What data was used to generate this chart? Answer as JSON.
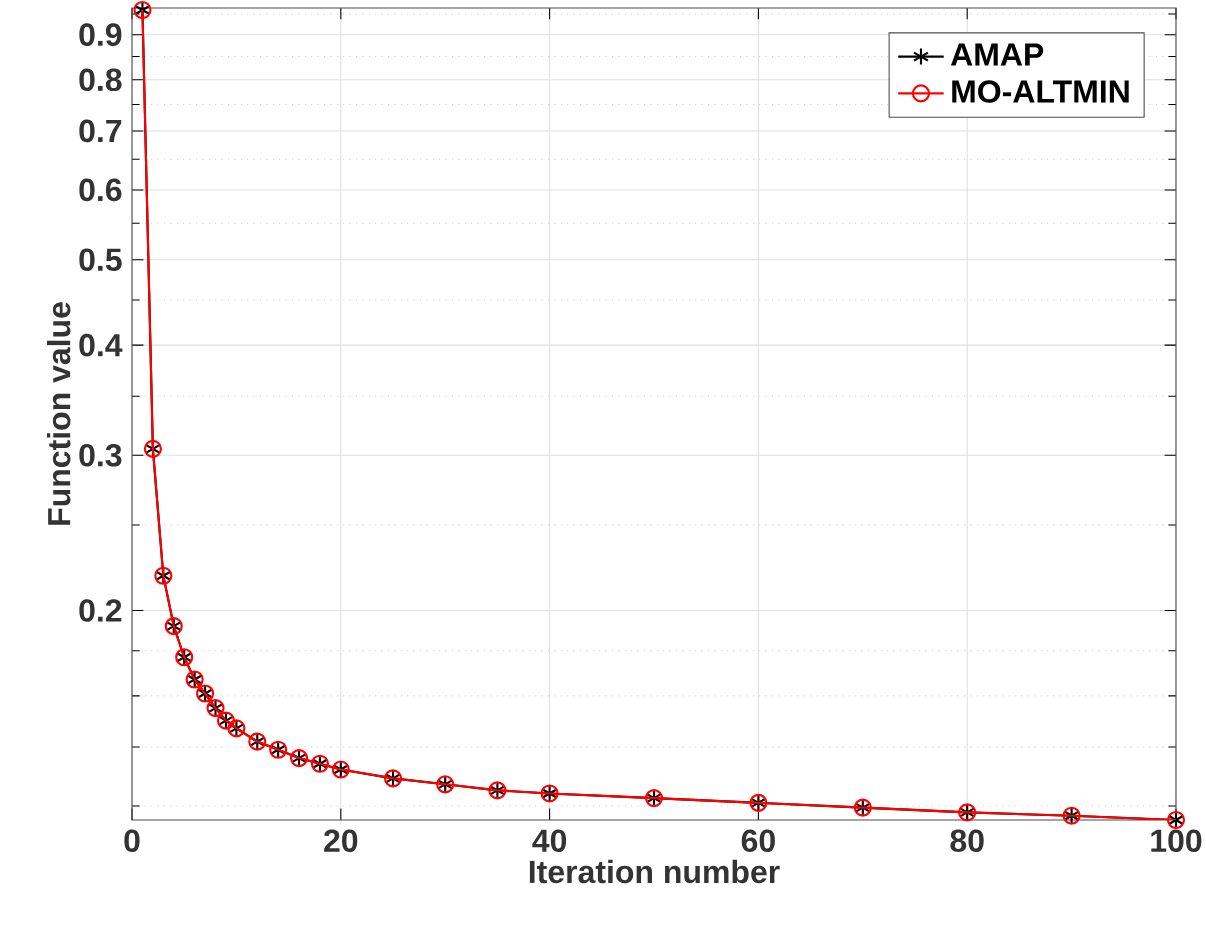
{
  "chart_data": {
    "type": "line",
    "xlabel": "Iteration number",
    "ylabel": "Function value",
    "x": [
      1,
      2,
      3,
      4,
      5,
      6,
      7,
      8,
      9,
      10,
      12,
      14,
      16,
      18,
      20,
      25,
      30,
      35,
      40,
      50,
      60,
      70,
      80,
      90,
      100
    ],
    "series": [
      {
        "name": "AMAP",
        "color": "#000000",
        "marker": "cross",
        "values": [
          0.96,
          0.305,
          0.219,
          0.192,
          0.177,
          0.167,
          0.161,
          0.155,
          0.15,
          0.147,
          0.142,
          0.139,
          0.136,
          0.134,
          0.132,
          0.129,
          0.127,
          0.125,
          0.124,
          0.1225,
          0.121,
          0.1195,
          0.118,
          0.117,
          0.1157
        ]
      },
      {
        "name": "MO-ALTMIN",
        "color": "#ff0000",
        "marker": "circle",
        "values": [
          0.96,
          0.305,
          0.219,
          0.192,
          0.177,
          0.167,
          0.161,
          0.155,
          0.15,
          0.147,
          0.142,
          0.139,
          0.136,
          0.134,
          0.132,
          0.129,
          0.127,
          0.125,
          0.124,
          0.1225,
          0.121,
          0.1195,
          0.118,
          0.117,
          0.1157
        ]
      }
    ],
    "xlim": [
      0,
      100
    ],
    "xticks": [
      0,
      20,
      40,
      60,
      80,
      100
    ],
    "ylim": [
      0.1157,
      0.965
    ],
    "yticks": [
      0.2,
      0.3,
      0.4,
      0.5,
      0.6,
      0.7,
      0.8,
      0.9
    ],
    "log": "y",
    "grid": true,
    "legend": "top right",
    "line_style": "solid"
  }
}
